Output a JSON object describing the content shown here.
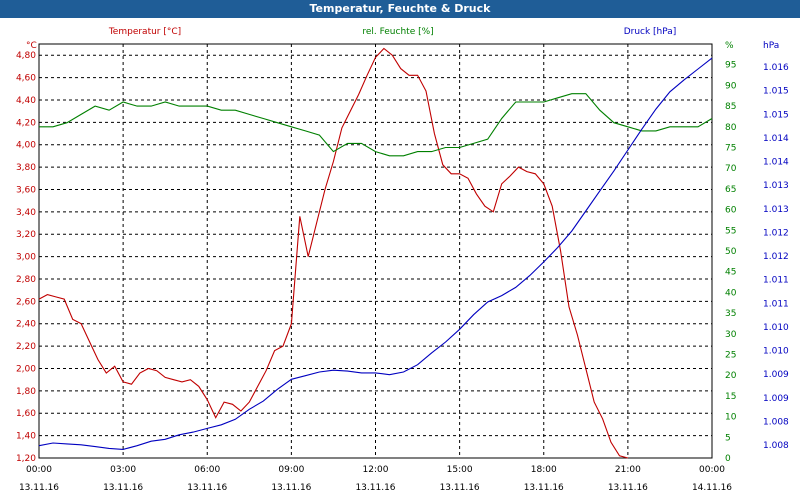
{
  "window": {
    "title": "Temperatur, Feuchte & Druck"
  },
  "colors": {
    "temp": "#c00000",
    "hum": "#008000",
    "press": "#0000c0",
    "grid": "#000000",
    "titlebar": "#1f5d97"
  },
  "chart_data": {
    "type": "line",
    "title": "Temperatur, Feuchte & Druck",
    "grid": true,
    "x_labels": [
      {
        "time": "00:00",
        "date": "13.11.16"
      },
      {
        "time": "03:00",
        "date": "13.11.16"
      },
      {
        "time": "06:00",
        "date": "13.11.16"
      },
      {
        "time": "09:00",
        "date": "13.11.16"
      },
      {
        "time": "12:00",
        "date": "13.11.16"
      },
      {
        "time": "15:00",
        "date": "13.11.16"
      },
      {
        "time": "18:00",
        "date": "13.11.16"
      },
      {
        "time": "21:00",
        "date": "13.11.16"
      },
      {
        "time": "00:00",
        "date": "14.11.16"
      }
    ],
    "x_unit": "hours since 13.11.16 00:00",
    "axes": {
      "temp": {
        "label": "Temperatur [°C]",
        "unit": "°C",
        "range": [
          1.2,
          4.9
        ],
        "ticks": [
          "4,80",
          "4,60",
          "4,40",
          "4,20",
          "4,00",
          "3,80",
          "3,60",
          "3,40",
          "3,20",
          "3,00",
          "2,80",
          "2,60",
          "2,40",
          "2,20",
          "2,00",
          "1,80",
          "1,60",
          "1,40",
          "1,20"
        ]
      },
      "hum": {
        "label": "rel. Feuchte [%]",
        "unit": "%",
        "range": [
          0,
          100
        ],
        "ticks": [
          "95",
          "90",
          "85",
          "80",
          "75",
          "70",
          "65",
          "60",
          "55",
          "50",
          "45",
          "40",
          "35",
          "30",
          "25",
          "20",
          "15",
          "10",
          "5",
          "0"
        ]
      },
      "press": {
        "label": "Druck [hPa]",
        "unit": "hPa",
        "range": [
          1007.55,
          1016.65
        ],
        "ticks": [
          "1.016",
          "1.015",
          "1.015",
          "1.014",
          "1.014",
          "1.013",
          "1.013",
          "1.012",
          "1.012",
          "1.011",
          "1.011",
          "1.010",
          "1.010",
          "1.009",
          "1.009",
          "1.008",
          "1.008"
        ]
      }
    },
    "series": [
      {
        "name": "Temperatur [°C]",
        "axis": "temp",
        "x": [
          0,
          0.3,
          0.6,
          0.9,
          1.2,
          1.5,
          1.8,
          2.1,
          2.4,
          2.7,
          3,
          3.3,
          3.6,
          3.9,
          4.2,
          4.5,
          4.8,
          5.1,
          5.4,
          5.7,
          6,
          6.3,
          6.6,
          6.9,
          7.2,
          7.5,
          7.8,
          8.1,
          8.4,
          8.7,
          9,
          9.3,
          9.6,
          9.9,
          10.2,
          10.5,
          10.8,
          11.1,
          11.4,
          11.7,
          12,
          12.3,
          12.6,
          12.9,
          13.2,
          13.5,
          13.8,
          14.1,
          14.4,
          14.7,
          15,
          15.3,
          15.6,
          15.9,
          16.2,
          16.5,
          16.8,
          17.1,
          17.4,
          17.7,
          18,
          18.3,
          18.6,
          18.9,
          19.2,
          19.5,
          19.8,
          20.1,
          20.4,
          20.7,
          21,
          21.3,
          21.6,
          21.9,
          22.2,
          22.5,
          22.8,
          23.1,
          23.4,
          23.7,
          23.95
        ],
        "values": [
          2.62,
          2.66,
          2.64,
          2.62,
          2.44,
          2.4,
          2.24,
          2.08,
          1.96,
          2.02,
          1.88,
          1.86,
          1.96,
          2.0,
          1.98,
          1.92,
          1.9,
          1.88,
          1.9,
          1.84,
          1.72,
          1.56,
          1.7,
          1.68,
          1.62,
          1.7,
          1.84,
          1.98,
          2.16,
          2.2,
          2.4,
          3.36,
          3.0,
          3.3,
          3.6,
          3.85,
          4.15,
          4.3,
          4.45,
          4.62,
          4.78,
          4.86,
          4.8,
          4.68,
          4.62,
          4.62,
          4.48,
          4.1,
          3.82,
          3.74,
          3.74,
          3.7,
          3.56,
          3.45,
          3.4,
          3.65,
          3.72,
          3.8,
          3.76,
          3.74,
          3.65,
          3.45,
          3.05,
          2.55,
          2.3,
          2.0,
          1.7,
          1.55,
          1.34,
          1.22,
          1.2,
          1.2,
          1.2,
          1.2,
          1.2,
          1.2,
          1.2,
          1.2,
          1.2,
          1.2,
          1.2
        ]
      },
      {
        "name": "rel. Feuchte [%]",
        "axis": "hum",
        "x": [
          0,
          0.5,
          1,
          1.5,
          2,
          2.5,
          3,
          3.5,
          4,
          4.5,
          5,
          5.5,
          6,
          6.5,
          7,
          7.5,
          8,
          8.5,
          9,
          9.5,
          10,
          10.5,
          11,
          11.5,
          12,
          12.5,
          13,
          13.5,
          14,
          14.5,
          15,
          15.5,
          16,
          16.5,
          17,
          17.5,
          18,
          18.5,
          19,
          19.5,
          20,
          20.5,
          21,
          21.5,
          22,
          22.5,
          23,
          23.5,
          24
        ],
        "values": [
          80,
          80,
          81,
          83,
          85,
          84,
          86,
          85,
          85,
          86,
          85,
          85,
          85,
          84,
          84,
          83,
          82,
          81,
          80,
          79,
          78,
          74,
          76,
          76,
          74,
          73,
          73,
          74,
          74,
          75,
          75,
          76,
          77,
          82,
          86,
          86,
          86,
          87,
          88,
          88,
          84,
          81,
          80,
          79,
          79,
          80,
          80,
          80,
          82
        ]
      },
      {
        "name": "Druck [hPa]",
        "axis": "press",
        "x": [
          0,
          0.5,
          1,
          1.5,
          2,
          2.5,
          3,
          3.5,
          4,
          4.5,
          5,
          5.5,
          6,
          6.5,
          7,
          7.5,
          8,
          8.5,
          9,
          9.5,
          10,
          10.5,
          11,
          11.5,
          12,
          12.5,
          13,
          13.5,
          14,
          14.5,
          15,
          15.5,
          16,
          16.5,
          17,
          17.5,
          18,
          18.5,
          19,
          19.5,
          20,
          20.5,
          21,
          21.5,
          22,
          22.5,
          23,
          23.5,
          24
        ],
        "values": [
          1007.82,
          1007.88,
          1007.86,
          1007.84,
          1007.8,
          1007.76,
          1007.74,
          1007.82,
          1007.92,
          1007.96,
          1008.06,
          1008.12,
          1008.2,
          1008.28,
          1008.4,
          1008.62,
          1008.8,
          1009.06,
          1009.28,
          1009.36,
          1009.44,
          1009.48,
          1009.46,
          1009.42,
          1009.42,
          1009.38,
          1009.44,
          1009.6,
          1009.86,
          1010.1,
          1010.38,
          1010.7,
          1010.98,
          1011.12,
          1011.3,
          1011.56,
          1011.86,
          1012.18,
          1012.54,
          1012.98,
          1013.42,
          1013.86,
          1014.32,
          1014.78,
          1015.22,
          1015.6,
          1015.86,
          1016.1,
          1016.34
        ]
      }
    ]
  }
}
